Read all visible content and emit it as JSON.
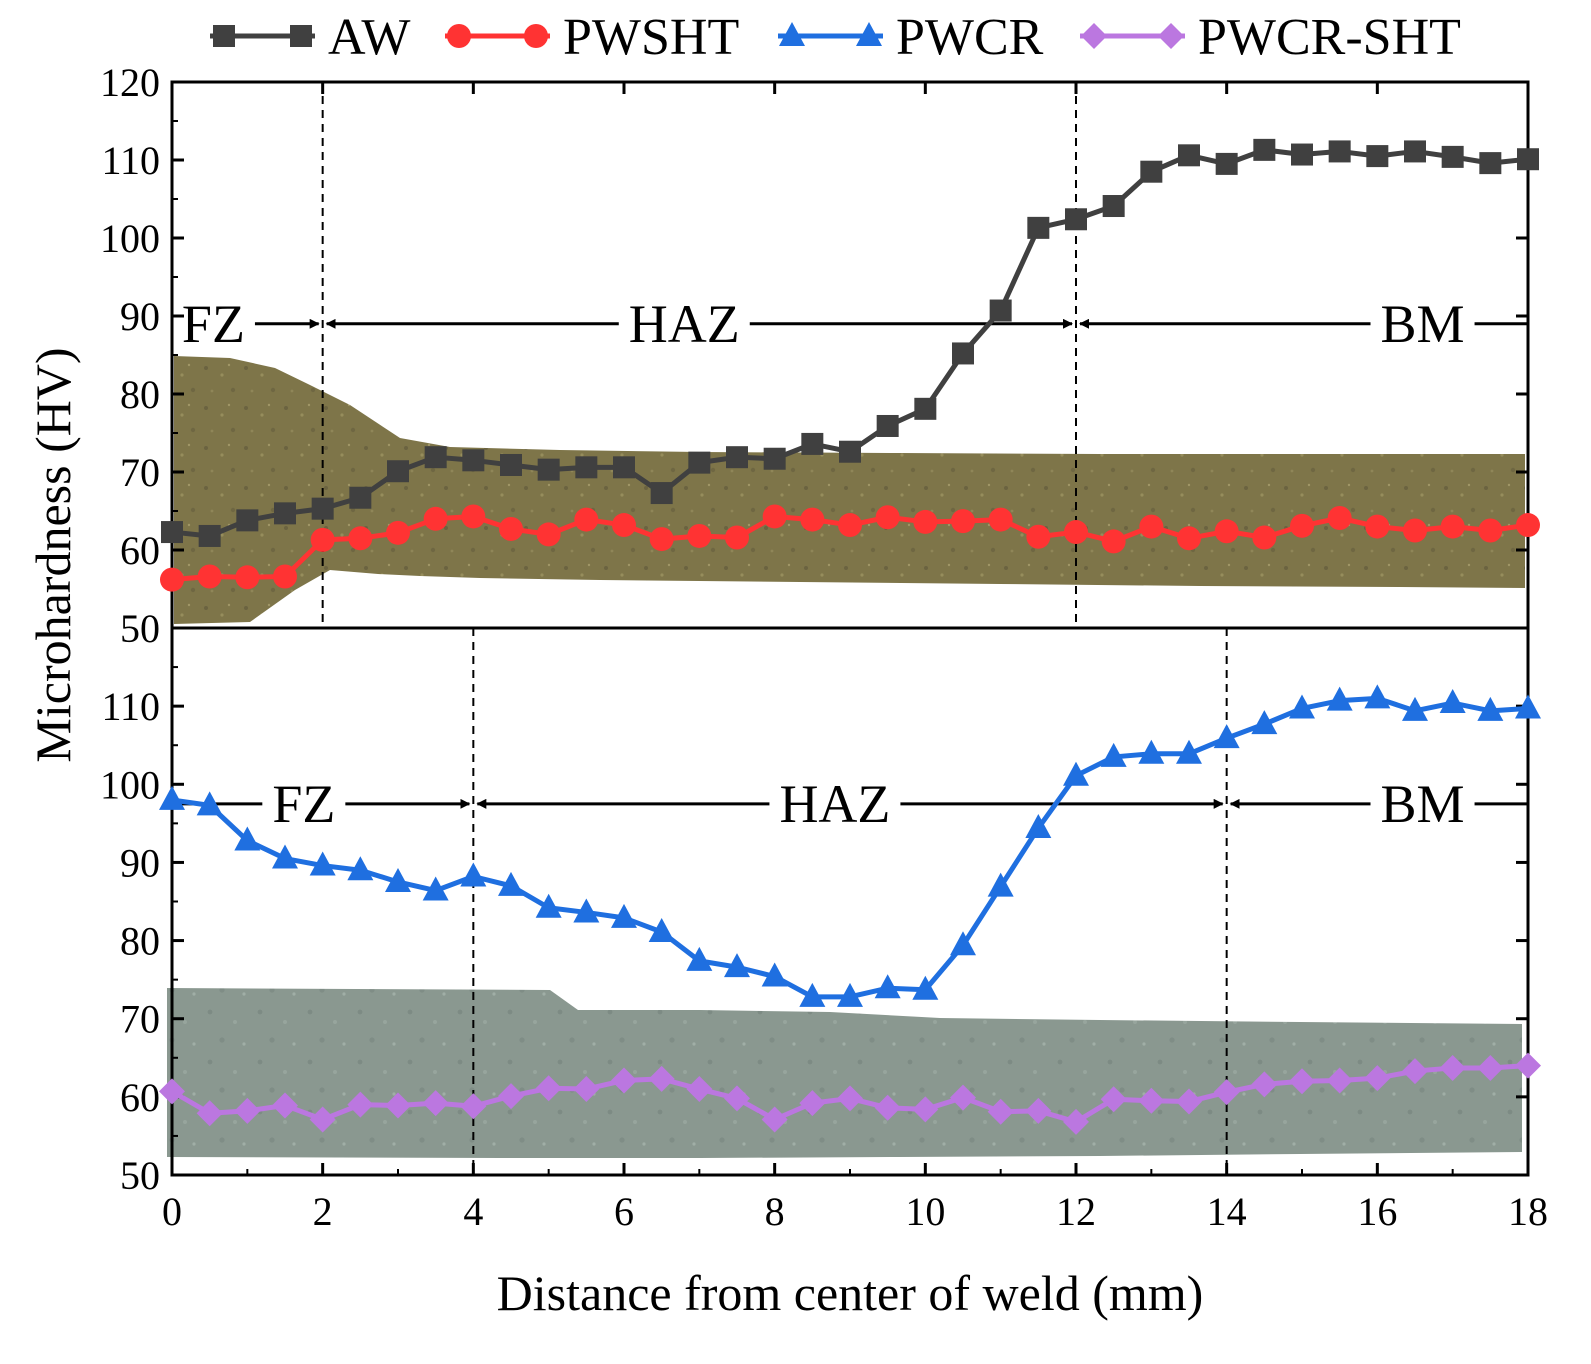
{
  "chart_data": {
    "type": "line",
    "xlabel": "Distance from center of weld (mm)",
    "ylabel": "Microhardness (HV)",
    "xlim": [
      0,
      18
    ],
    "ylim": [
      50,
      120
    ],
    "xticks": [
      0,
      2,
      4,
      6,
      8,
      10,
      12,
      14,
      16,
      18
    ],
    "x": [
      0,
      0.5,
      1,
      1.5,
      2,
      2.5,
      3,
      3.5,
      4,
      4.5,
      5,
      5.5,
      6,
      6.5,
      7,
      7.5,
      8,
      8.5,
      9,
      9.5,
      10,
      10.5,
      11,
      11.5,
      12,
      12.5,
      13,
      13.5,
      14,
      14.5,
      15,
      15.5,
      16,
      16.5,
      17,
      17.5,
      18
    ],
    "legend": {
      "placement": "top",
      "entries": [
        {
          "series": "AW"
        },
        {
          "series": "PWSHT"
        },
        {
          "series": "PWCR"
        },
        {
          "series": "PWCR-SHT"
        }
      ]
    },
    "panels": [
      {
        "id": "top",
        "ylim": [
          50,
          120
        ],
        "yticks": [
          50,
          60,
          70,
          80,
          90,
          100,
          110,
          120
        ],
        "boundaries": [
          2,
          12
        ],
        "zone_arrow_y": 89,
        "zones": [
          {
            "label": "FZ",
            "from": 0,
            "to": 2,
            "label_x": 0.55
          },
          {
            "label": "HAZ",
            "from": 2,
            "to": 12,
            "label_x": 6.8
          },
          {
            "label": "BM",
            "from": 12,
            "to": 18,
            "label_x": 16.6
          }
        ],
        "series": [
          {
            "name": "AW",
            "color": "#404040",
            "marker": "square",
            "values": [
              62.3,
              61.8,
              63.8,
              64.7,
              65.3,
              66.7,
              70.1,
              71.9,
              71.5,
              70.9,
              70.3,
              70.6,
              70.6,
              67.3,
              71.2,
              71.9,
              71.7,
              73.6,
              72.6,
              75.9,
              78.1,
              85.2,
              90.7,
              101.3,
              102.4,
              104.1,
              108.5,
              110.6,
              109.5,
              111.3,
              110.7,
              111.1,
              110.5,
              111.1,
              110.4,
              109.6,
              110.1
            ]
          },
          {
            "name": "PWSHT",
            "color": "#ff3333",
            "marker": "circle",
            "values": [
              56.2,
              56.6,
              56.5,
              56.6,
              61.3,
              61.5,
              62.2,
              64.0,
              64.3,
              62.7,
              62.0,
              63.9,
              63.2,
              61.4,
              61.8,
              61.6,
              64.3,
              63.9,
              63.2,
              64.2,
              63.6,
              63.7,
              63.9,
              61.7,
              62.3,
              61.1,
              63.0,
              61.5,
              62.4,
              61.6,
              63.1,
              64.1,
              63.0,
              62.5,
              63.0,
              62.5,
              63.2
            ]
          }
        ]
      },
      {
        "id": "bottom",
        "ylim": [
          50,
          120
        ],
        "yticks": [
          50,
          60,
          70,
          80,
          90,
          100,
          110
        ],
        "boundaries": [
          4,
          14
        ],
        "zone_arrow_y": 97.5,
        "zones": [
          {
            "label": "FZ",
            "from": 0,
            "to": 4,
            "label_x": 1.75
          },
          {
            "label": "HAZ",
            "from": 4,
            "to": 14,
            "label_x": 8.8
          },
          {
            "label": "BM",
            "from": 14,
            "to": 18,
            "label_x": 16.6
          }
        ],
        "series": [
          {
            "name": "PWCR",
            "color": "#1f6fe0",
            "marker": "triangle",
            "values": [
              98.0,
              97.3,
              92.8,
              90.5,
              89.6,
              89.0,
              87.5,
              86.4,
              88.2,
              87.0,
              84.2,
              83.6,
              82.9,
              81.1,
              77.4,
              76.6,
              75.4,
              72.8,
              72.8,
              73.9,
              73.7,
              79.4,
              86.9,
              94.4,
              101.1,
              103.5,
              103.9,
              103.9,
              105.9,
              107.7,
              109.7,
              110.7,
              111.0,
              109.4,
              110.4,
              109.4,
              109.7
            ]
          },
          {
            "name": "PWCR-SHT",
            "color": "#bb77e0",
            "marker": "diamond",
            "values": [
              60.7,
              57.9,
              58.2,
              58.9,
              57.1,
              59.0,
              58.9,
              59.2,
              58.8,
              60.1,
              61.1,
              61.0,
              62.1,
              62.3,
              61.0,
              59.8,
              57.1,
              59.2,
              59.8,
              58.6,
              58.4,
              59.9,
              58.1,
              58.2,
              56.8,
              59.7,
              59.5,
              59.4,
              60.6,
              61.6,
              62.0,
              62.1,
              62.4,
              63.3,
              63.7,
              63.7,
              64.0
            ]
          }
        ]
      }
    ]
  }
}
